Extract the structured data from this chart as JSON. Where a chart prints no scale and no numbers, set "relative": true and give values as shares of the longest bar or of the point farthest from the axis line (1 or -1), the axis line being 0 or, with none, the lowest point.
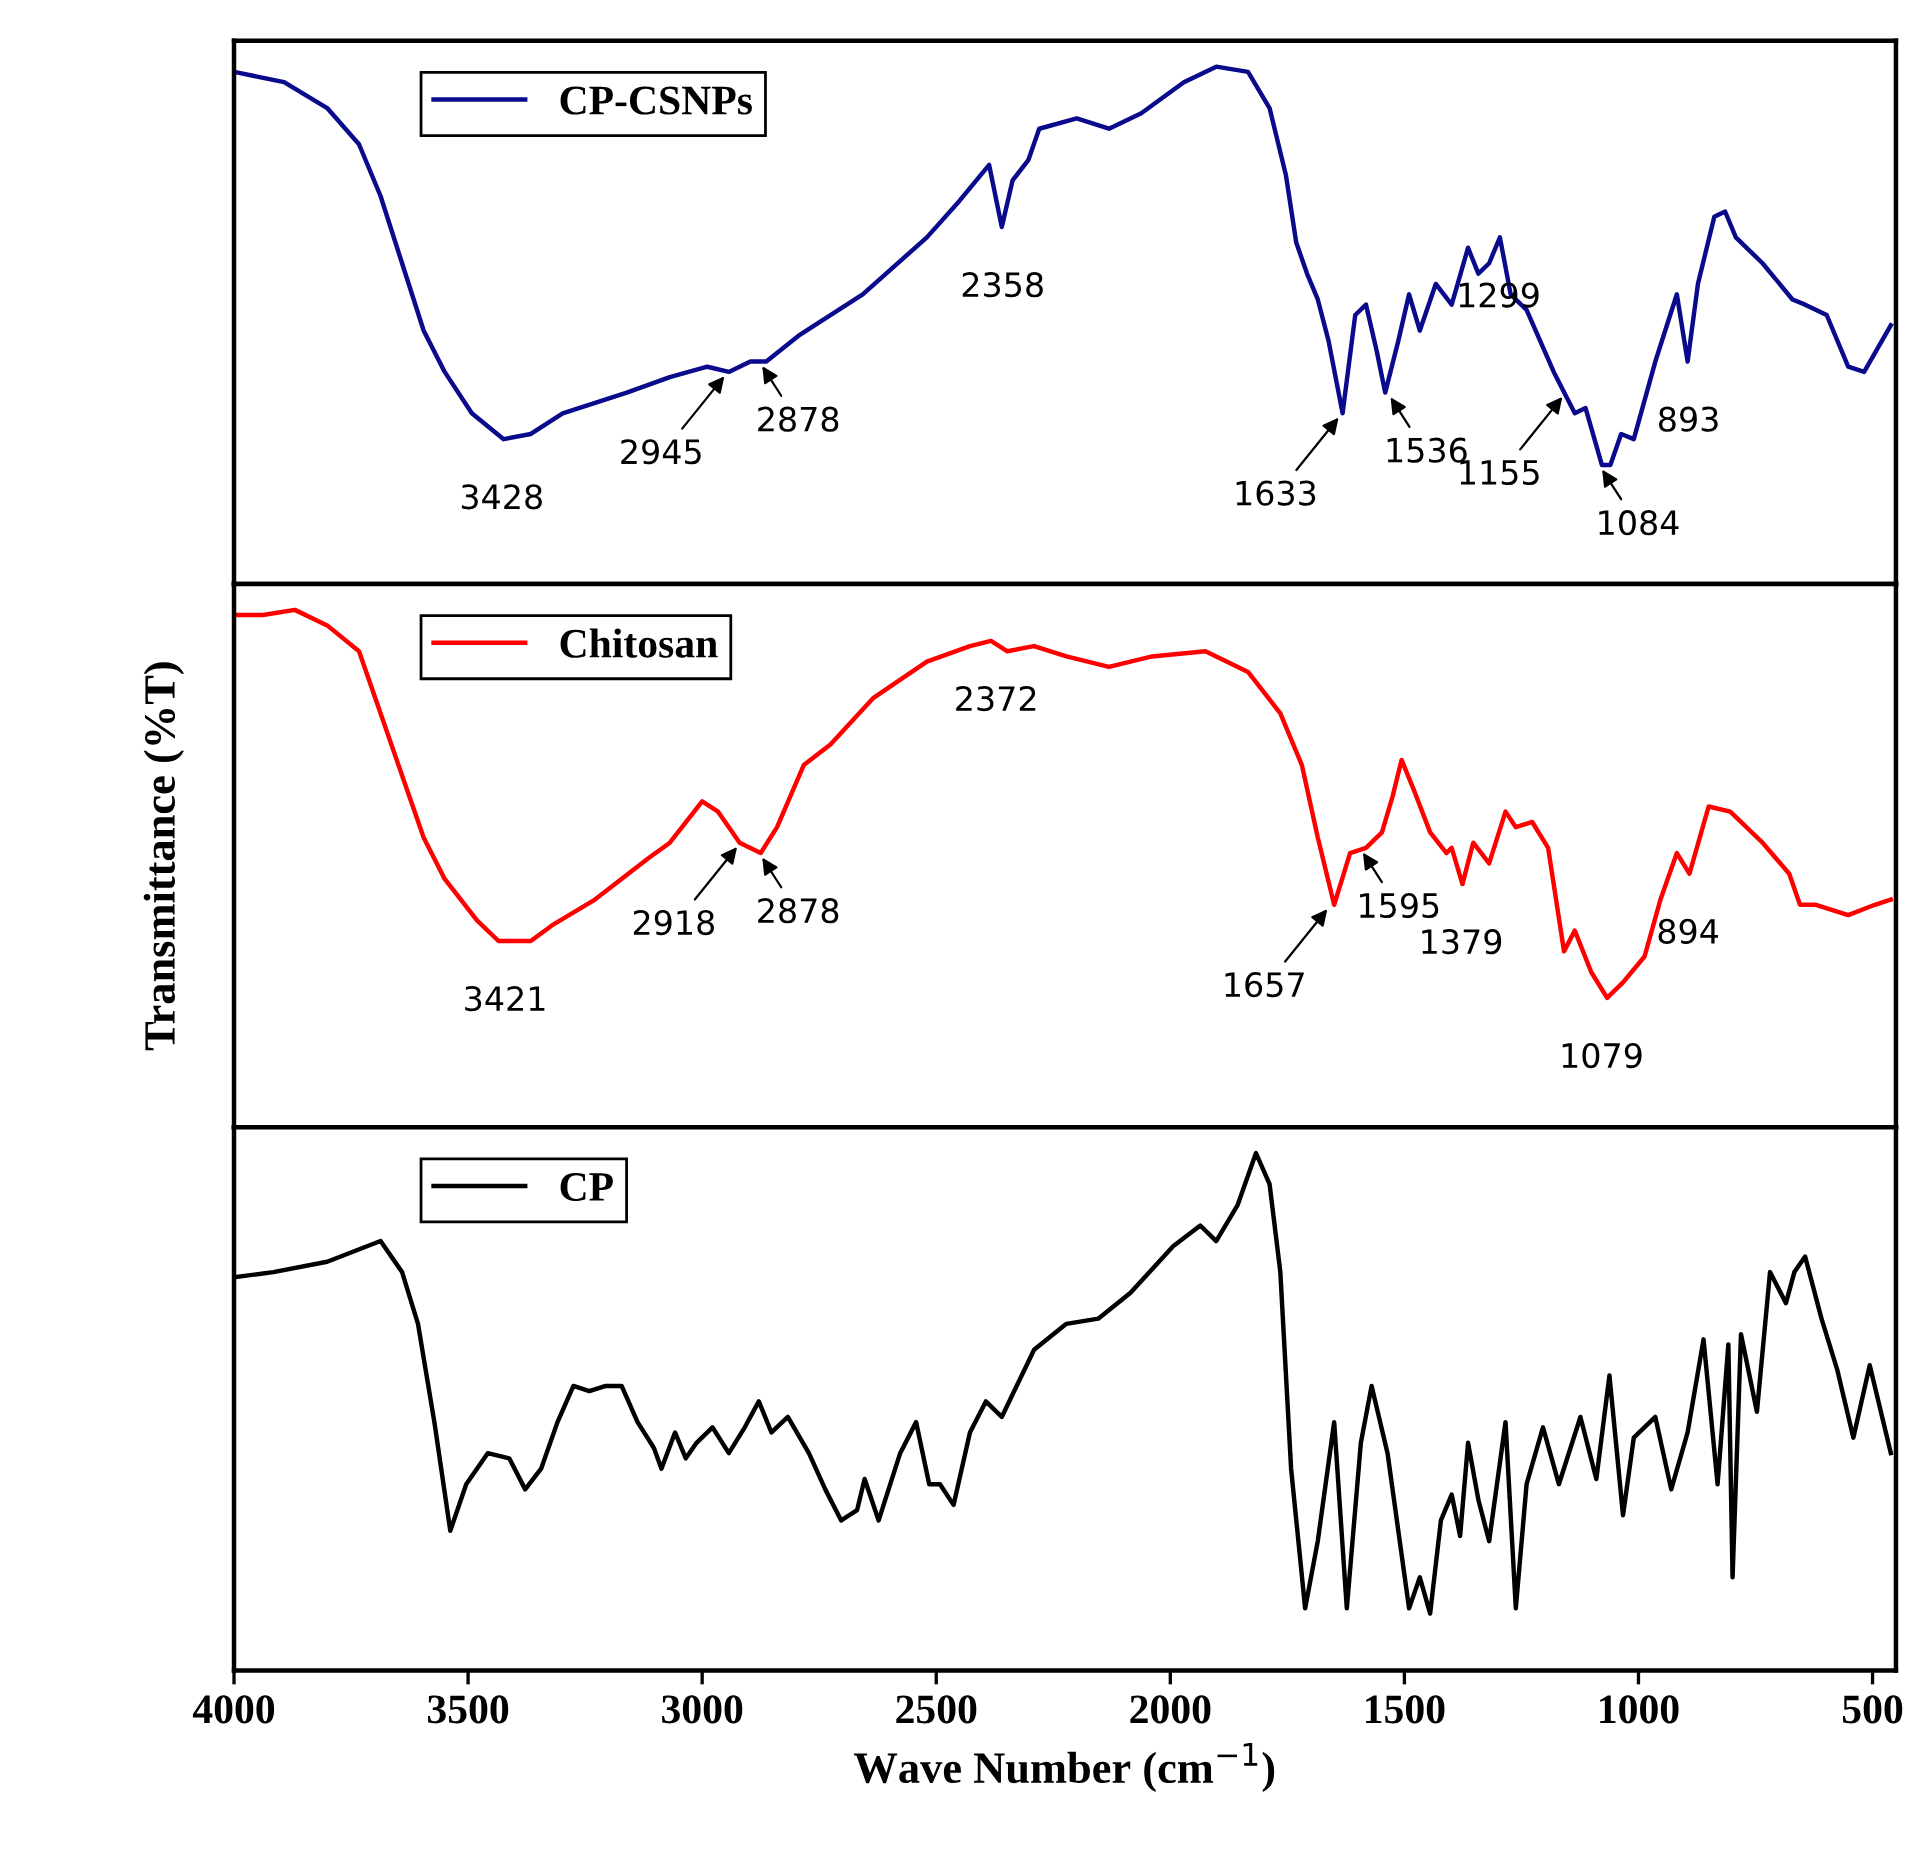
{
  "chart_data": [
    {
      "type": "line",
      "relative": true,
      "xlim": [
        4000,
        450
      ],
      "xticks": [
        4000,
        3500,
        3000,
        2500,
        2000,
        1500,
        1000,
        500
      ],
      "tick_labels": false,
      "legend": "top left",
      "x": [
        4000,
        3893,
        3801,
        3733,
        3687,
        3641,
        3595,
        3550,
        3492,
        3424,
        3366,
        3298,
        3161,
        3069,
        2989,
        2943,
        2897,
        2863,
        2794,
        2657,
        2520,
        2451,
        2387,
        2360,
        2337,
        2303,
        2280,
        2200,
        2131,
        2062,
        1971,
        1902,
        1834,
        1788,
        1753,
        1731,
        1708,
        1685,
        1662,
        1632,
        1605,
        1582,
        1559,
        1541,
        1513,
        1490,
        1467,
        1433,
        1399,
        1364,
        1342,
        1319,
        1296,
        1273,
        1239,
        1181,
        1136,
        1113,
        1078,
        1060,
        1037,
        1010,
        964,
        918,
        895,
        873,
        838,
        815,
        792,
        735,
        671,
        644,
        598,
        552,
        518,
        461
      ],
      "series": [
        {
          "name": "CP-CSNPs",
          "color": "#0a0a8c",
          "values": [
            0.99,
            0.97,
            0.92,
            0.85,
            0.75,
            0.62,
            0.49,
            0.41,
            0.33,
            0.28,
            0.29,
            0.33,
            0.37,
            0.4,
            0.42,
            0.41,
            0.43,
            0.43,
            0.48,
            0.56,
            0.67,
            0.74,
            0.81,
            0.69,
            0.78,
            0.82,
            0.88,
            0.9,
            0.88,
            0.91,
            0.97,
            1.0,
            0.99,
            0.92,
            0.79,
            0.66,
            0.6,
            0.55,
            0.47,
            0.33,
            0.52,
            0.54,
            0.45,
            0.37,
            0.47,
            0.56,
            0.49,
            0.58,
            0.54,
            0.65,
            0.6,
            0.62,
            0.67,
            0.56,
            0.53,
            0.41,
            0.33,
            0.34,
            0.23,
            0.23,
            0.29,
            0.28,
            0.43,
            0.56,
            0.43,
            0.58,
            0.71,
            0.72,
            0.67,
            0.62,
            0.55,
            0.54,
            0.52,
            0.42,
            0.41,
            0.5
          ]
        }
      ],
      "annotations": [
        {
          "text": "3428",
          "x": 3428,
          "y": 0.28
        },
        {
          "text": "2945",
          "x": 2945,
          "y": 0.41
        },
        {
          "text": "2878",
          "x": 2878,
          "y": 0.43
        },
        {
          "text": "2358",
          "x": 2358,
          "y": 0.69
        },
        {
          "text": "1633",
          "x": 1633,
          "y": 0.33
        },
        {
          "text": "1536",
          "x": 1536,
          "y": 0.37
        },
        {
          "text": "1299",
          "x": 1299,
          "y": 0.67
        },
        {
          "text": "1155",
          "x": 1155,
          "y": 0.37
        },
        {
          "text": "1084",
          "x": 1084,
          "y": 0.23
        },
        {
          "text": "893",
          "x": 893,
          "y": 0.43
        }
      ]
    },
    {
      "type": "line",
      "relative": true,
      "xlim": [
        4000,
        450
      ],
      "xticks": [
        4000,
        3500,
        3000,
        2500,
        2000,
        1500,
        1000,
        500
      ],
      "tick_labels": false,
      "legend": "top left",
      "ylabel": "Transmittance (%T)",
      "x": [
        4000,
        3938,
        3870,
        3801,
        3733,
        3687,
        3641,
        3595,
        3550,
        3481,
        3435,
        3366,
        3321,
        3229,
        3115,
        3069,
        3000,
        2966,
        2920,
        2875,
        2840,
        2783,
        2726,
        2634,
        2520,
        2428,
        2383,
        2348,
        2291,
        2222,
        2131,
        2039,
        1925,
        1834,
        1765,
        1719,
        1685,
        1650,
        1616,
        1582,
        1548,
        1525,
        1506,
        1479,
        1445,
        1410,
        1399,
        1376,
        1353,
        1319,
        1284,
        1262,
        1227,
        1193,
        1159,
        1136,
        1101,
        1067,
        1033,
        987,
        953,
        918,
        891,
        850,
        804,
        735,
        678,
        655,
        621,
        552,
        495,
        461
      ],
      "series": [
        {
          "name": "Chitosan",
          "color": "#ff0000",
          "values": [
            0.99,
            0.99,
            1.0,
            0.97,
            0.92,
            0.8,
            0.68,
            0.56,
            0.48,
            0.4,
            0.36,
            0.36,
            0.39,
            0.44,
            0.52,
            0.55,
            0.63,
            0.61,
            0.55,
            0.53,
            0.58,
            0.7,
            0.74,
            0.83,
            0.9,
            0.93,
            0.94,
            0.92,
            0.93,
            0.91,
            0.89,
            0.91,
            0.92,
            0.88,
            0.8,
            0.7,
            0.56,
            0.43,
            0.53,
            0.54,
            0.57,
            0.64,
            0.71,
            0.65,
            0.57,
            0.53,
            0.54,
            0.47,
            0.55,
            0.51,
            0.61,
            0.58,
            0.59,
            0.54,
            0.34,
            0.38,
            0.3,
            0.25,
            0.28,
            0.33,
            0.44,
            0.53,
            0.49,
            0.62,
            0.61,
            0.55,
            0.49,
            0.43,
            0.43,
            0.41,
            0.43,
            0.44
          ]
        }
      ],
      "annotations": [
        {
          "text": "3421",
          "x": 3421,
          "y": 0.36
        },
        {
          "text": "2918",
          "x": 2918,
          "y": 0.55
        },
        {
          "text": "2878",
          "x": 2878,
          "y": 0.53
        },
        {
          "text": "2372",
          "x": 2372,
          "y": 0.94
        },
        {
          "text": "1657",
          "x": 1657,
          "y": 0.43
        },
        {
          "text": "1595",
          "x": 1595,
          "y": 0.54
        },
        {
          "text": "1379",
          "x": 1379,
          "y": 0.47
        },
        {
          "text": "1079",
          "x": 1079,
          "y": 0.25
        },
        {
          "text": "894",
          "x": 894,
          "y": 0.49
        }
      ]
    },
    {
      "type": "line",
      "relative": true,
      "xlim": [
        4000,
        450
      ],
      "xticks": [
        4000,
        3500,
        3000,
        2500,
        2000,
        1500,
        1000,
        500
      ],
      "tick_labels": "x",
      "legend": "top left",
      "xlabel": "Wave Number (cm$^{−1}$)",
      "x": [
        4000,
        3916,
        3801,
        3687,
        3641,
        3607,
        3572,
        3538,
        3504,
        3458,
        3412,
        3378,
        3344,
        3309,
        3275,
        3241,
        3206,
        3172,
        3138,
        3103,
        3087,
        3058,
        3035,
        3012,
        2978,
        2943,
        2909,
        2879,
        2852,
        2817,
        2772,
        2737,
        2703,
        2669,
        2653,
        2623,
        2577,
        2543,
        2515,
        2492,
        2463,
        2428,
        2394,
        2360,
        2291,
        2222,
        2154,
        2085,
        1994,
        1936,
        1902,
        1856,
        1817,
        1788,
        1765,
        1742,
        1712,
        1685,
        1650,
        1623,
        1593,
        1570,
        1536,
        1490,
        1467,
        1445,
        1422,
        1399,
        1381,
        1364,
        1342,
        1319,
        1284,
        1262,
        1239,
        1204,
        1170,
        1124,
        1090,
        1062,
        1033,
        1010,
        964,
        930,
        895,
        861,
        831,
        808,
        799,
        781,
        747,
        719,
        685,
        667,
        644,
        609,
        575,
        541,
        506,
        461
      ],
      "series": [
        {
          "name": "CP",
          "color": "#000000",
          "values": [
            0.76,
            0.77,
            0.79,
            0.83,
            0.77,
            0.67,
            0.48,
            0.27,
            0.36,
            0.42,
            0.41,
            0.35,
            0.39,
            0.48,
            0.55,
            0.54,
            0.55,
            0.55,
            0.48,
            0.43,
            0.39,
            0.46,
            0.41,
            0.44,
            0.47,
            0.42,
            0.47,
            0.52,
            0.46,
            0.49,
            0.42,
            0.35,
            0.29,
            0.31,
            0.37,
            0.29,
            0.42,
            0.48,
            0.36,
            0.36,
            0.32,
            0.46,
            0.52,
            0.49,
            0.62,
            0.67,
            0.68,
            0.73,
            0.82,
            0.86,
            0.83,
            0.9,
            1.0,
            0.94,
            0.77,
            0.39,
            0.12,
            0.25,
            0.48,
            0.12,
            0.44,
            0.55,
            0.42,
            0.12,
            0.18,
            0.11,
            0.29,
            0.34,
            0.26,
            0.44,
            0.33,
            0.25,
            0.48,
            0.12,
            0.36,
            0.47,
            0.36,
            0.49,
            0.37,
            0.57,
            0.3,
            0.45,
            0.49,
            0.35,
            0.46,
            0.64,
            0.36,
            0.63,
            0.18,
            0.65,
            0.5,
            0.77,
            0.71,
            0.77,
            0.8,
            0.68,
            0.58,
            0.45,
            0.59,
            0.42
          ]
        }
      ]
    }
  ]
}
